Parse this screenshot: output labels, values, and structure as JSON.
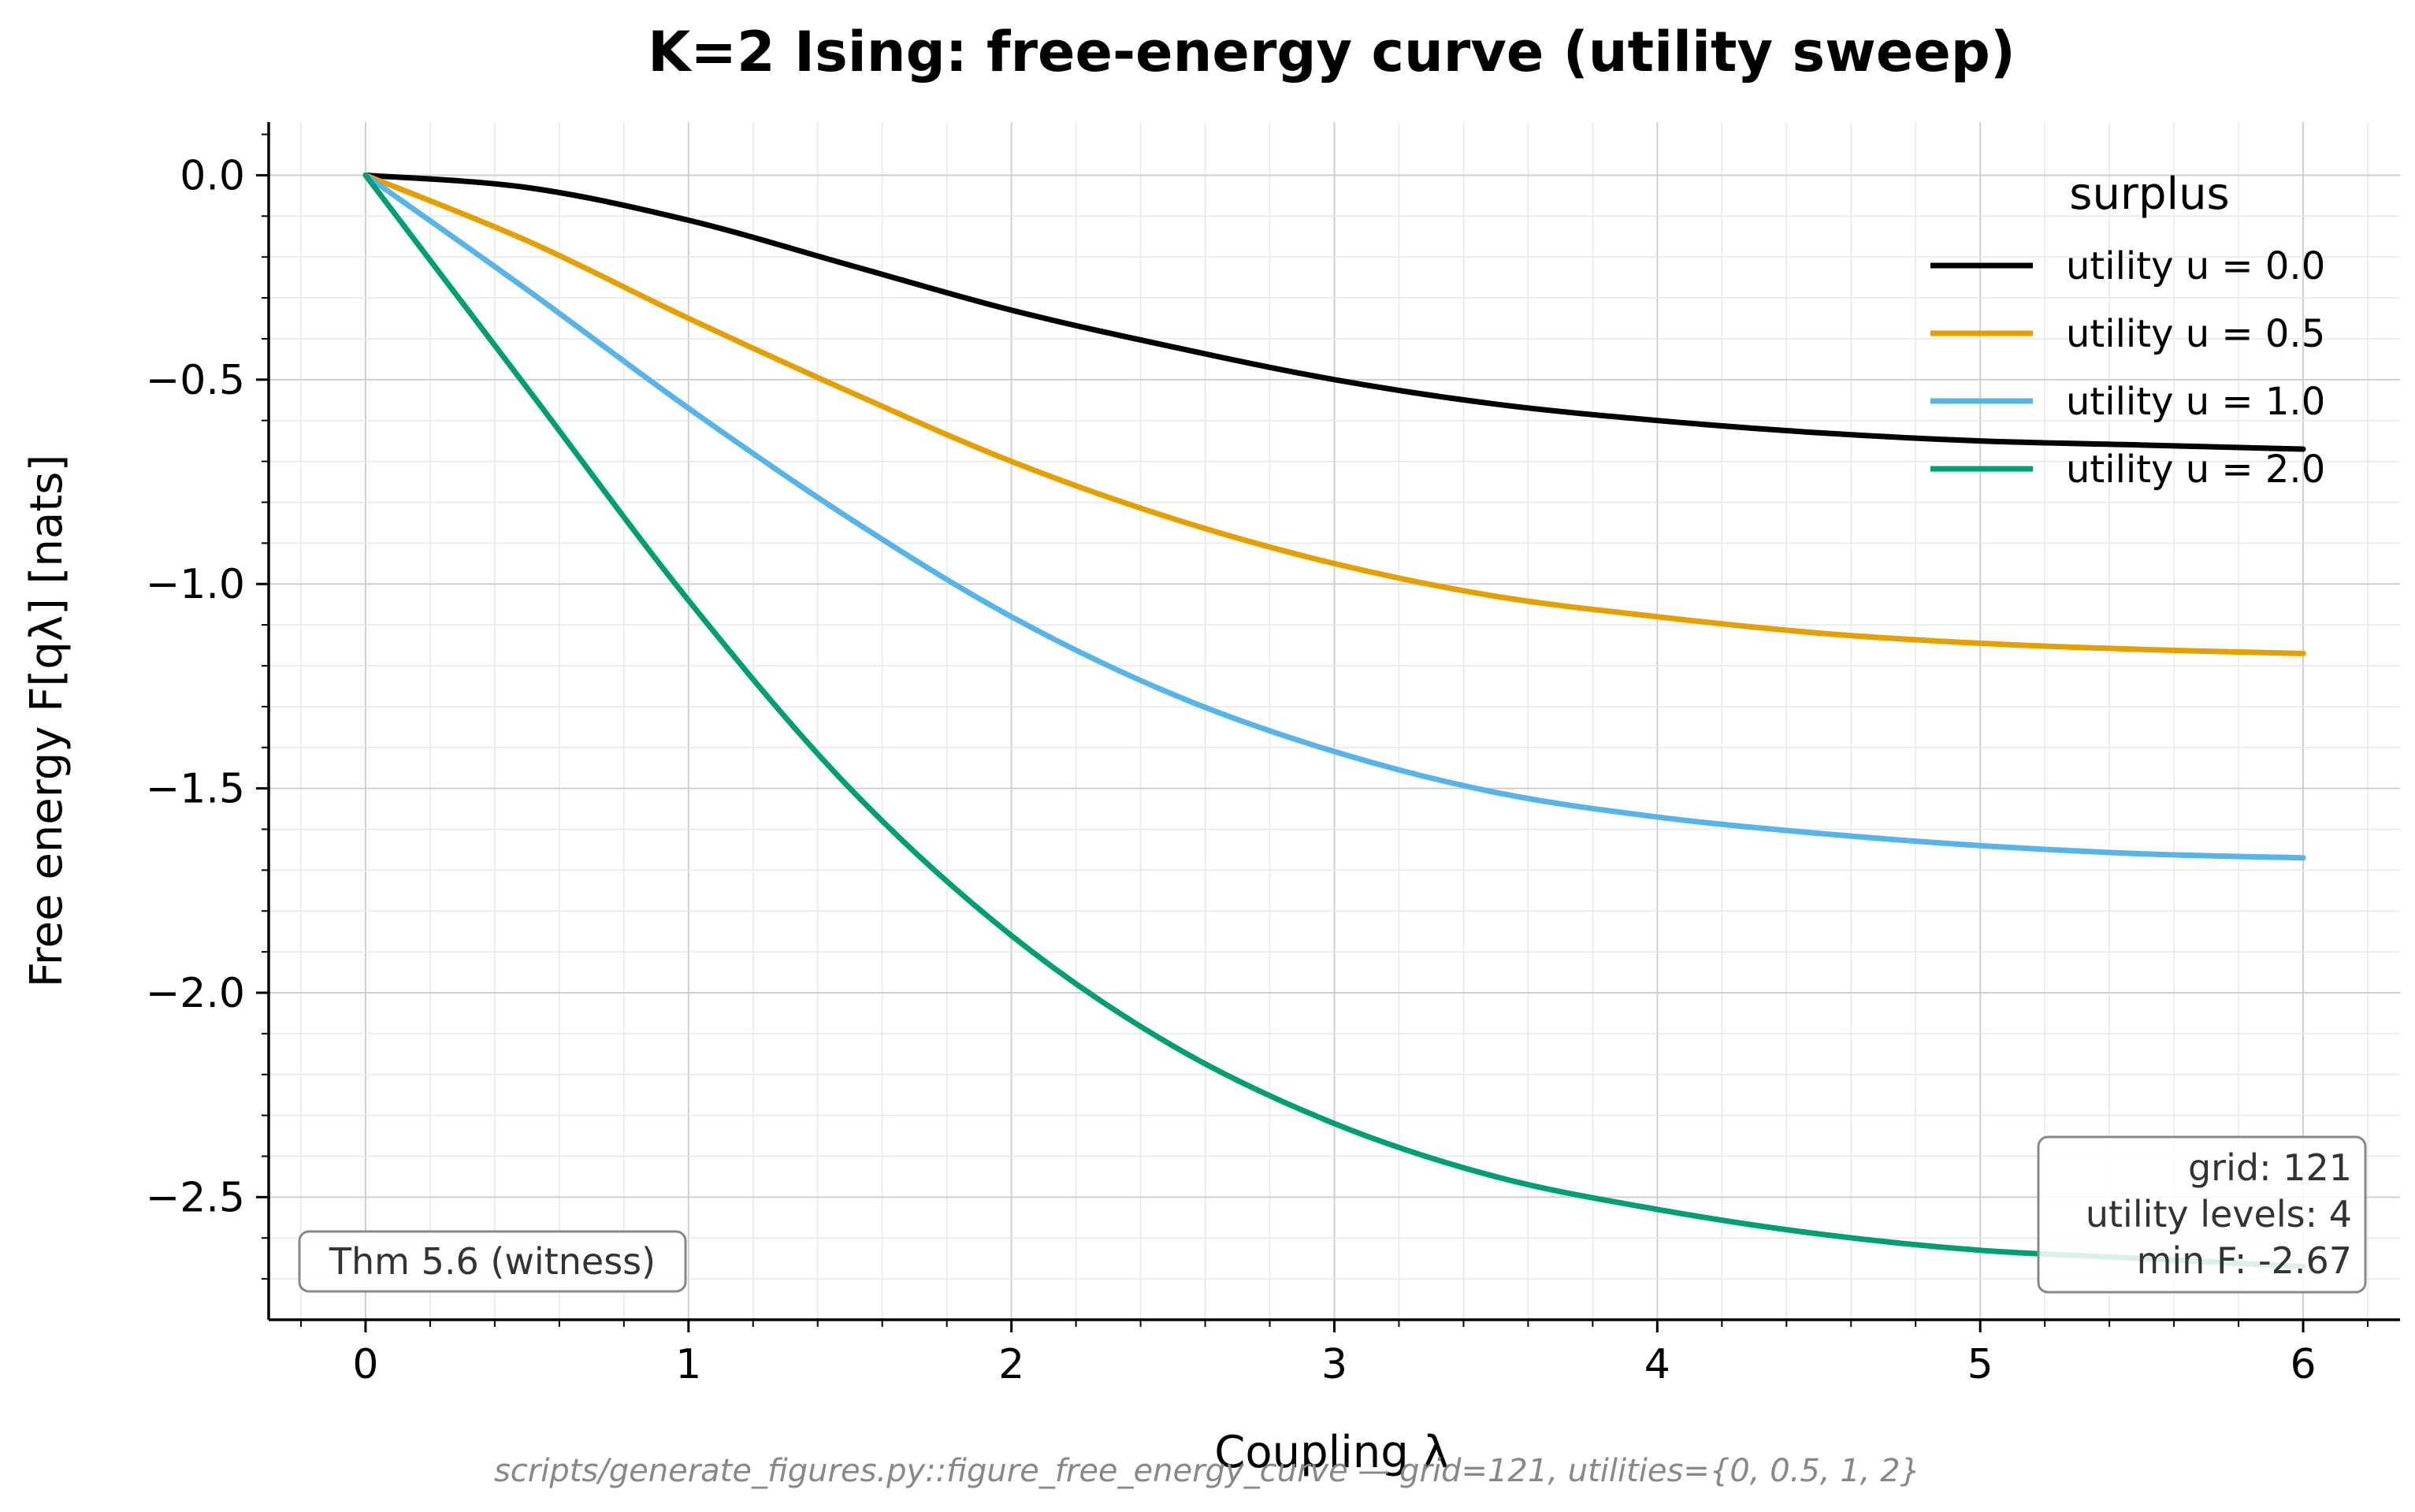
{
  "chart_data": {
    "type": "line",
    "title": "K=2 Ising: free-energy curve (utility sweep)",
    "xlabel": "Coupling λ",
    "ylabel": "Free energy F[qλ]  [nats]",
    "xlim": [
      -0.3,
      6.3
    ],
    "ylim": [
      -2.8,
      0.13
    ],
    "xticks": [
      0,
      1,
      2,
      3,
      4,
      5,
      6
    ],
    "yticks": [
      0.0,
      -0.5,
      -1.0,
      -1.5,
      -2.0,
      -2.5
    ],
    "xtick_labels": [
      "0",
      "1",
      "2",
      "3",
      "4",
      "5",
      "6"
    ],
    "ytick_labels": [
      "0.0",
      "−0.5",
      "−1.0",
      "−1.5",
      "−2.0",
      "−2.5"
    ],
    "grid": true,
    "legend_title": "surplus",
    "legend_position": "top-right",
    "x": [
      0,
      0.5,
      1,
      1.5,
      2,
      2.5,
      3,
      3.5,
      4,
      4.5,
      5,
      5.5,
      6
    ],
    "series": [
      {
        "name": "utility u = 0.0",
        "color": "#000000",
        "values": [
          0,
          -0.03,
          -0.11,
          -0.22,
          -0.33,
          -0.42,
          -0.5,
          -0.56,
          -0.6,
          -0.63,
          -0.65,
          -0.66,
          -0.67
        ]
      },
      {
        "name": "utility u = 0.5",
        "color": "#E69F00",
        "values": [
          0,
          -0.16,
          -0.35,
          -0.53,
          -0.7,
          -0.84,
          -0.95,
          -1.03,
          -1.08,
          -1.12,
          -1.145,
          -1.16,
          -1.17
        ]
      },
      {
        "name": "utility u = 1.0",
        "color": "#56B4E9",
        "values": [
          0,
          -0.28,
          -0.57,
          -0.84,
          -1.08,
          -1.27,
          -1.41,
          -1.51,
          -1.57,
          -1.61,
          -1.64,
          -1.66,
          -1.67
        ]
      },
      {
        "name": "utility u = 2.0",
        "color": "#009E73",
        "values": [
          0,
          -0.52,
          -1.04,
          -1.5,
          -1.86,
          -2.13,
          -2.32,
          -2.45,
          -2.53,
          -2.59,
          -2.63,
          -2.65,
          -2.67
        ]
      }
    ],
    "annotations": {
      "witness": "Thm 5.6 (witness)",
      "stats": [
        "grid: 121",
        "utility levels: 4",
        "min F: -2.67"
      ],
      "footer": "scripts/generate_figures.py::figure_free_energy_curve — grid=121, utilities={0, 0.5, 1, 2}"
    }
  }
}
